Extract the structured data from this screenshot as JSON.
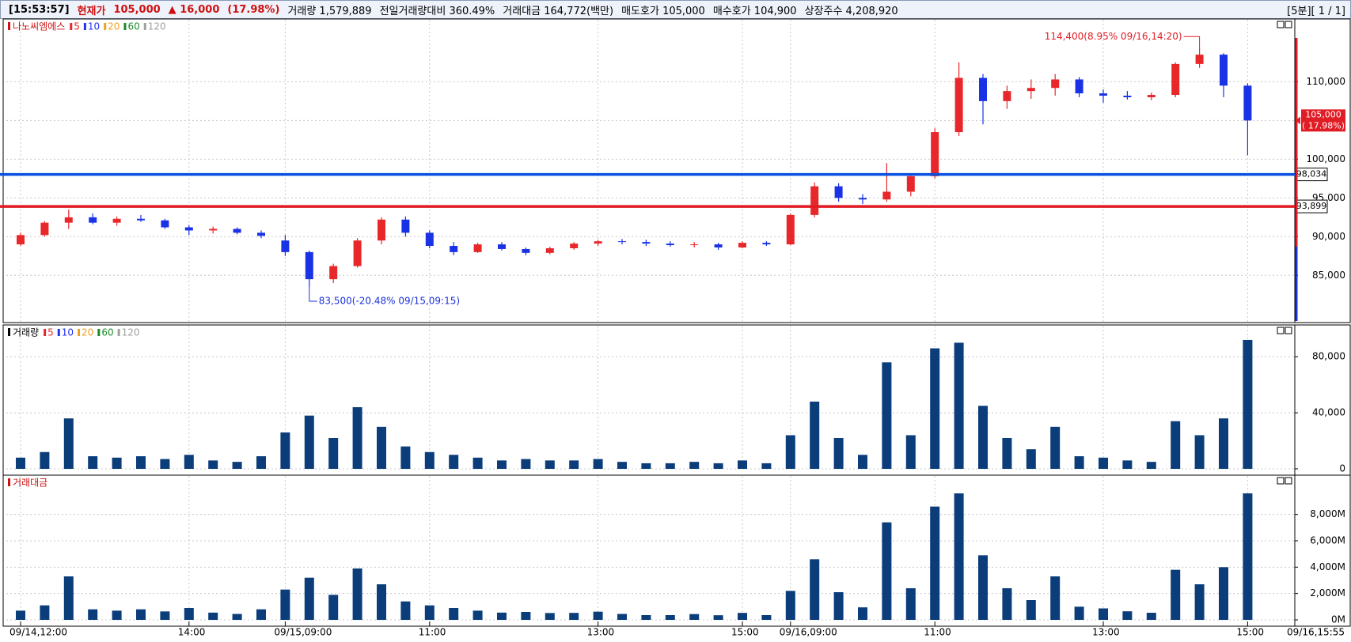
{
  "header": {
    "items": [
      {
        "text": "[15:53:57]",
        "color": "#000000"
      },
      {
        "text": "현재가",
        "color": "#d01010"
      },
      {
        "text": "105,000",
        "color": "#d01010"
      },
      {
        "text": "▲ 16,000",
        "color": "#d01010"
      },
      {
        "text": "(17.98%)",
        "color": "#d01010"
      },
      {
        "text": "거래량 1,579,889",
        "color": "#000000"
      },
      {
        "text": "전일거래량대비 360.49%",
        "color": "#000000"
      },
      {
        "text": "거래대금 164,772(백만)",
        "color": "#000000"
      },
      {
        "text": "매도호가 105,000",
        "color": "#000000"
      },
      {
        "text": "매수호가 104,900",
        "color": "#000000"
      },
      {
        "text": "상장주수 4,208,920",
        "color": "#000000"
      }
    ],
    "right": "[5분][ 1 / 1]"
  },
  "chart_data": [
    {
      "type": "candlestick",
      "title": "나노씨엠에스",
      "title_color": "#d01010",
      "legend": [
        {
          "name": "5",
          "color": "#e8272a"
        },
        {
          "name": "10",
          "color": "#2233ee"
        },
        {
          "name": "20",
          "color": "#f0a020"
        },
        {
          "name": "60",
          "color": "#1a8a2a"
        },
        {
          "name": "120",
          "color": "#a0a0a0"
        }
      ],
      "up_color": "#e8272a",
      "down_color": "#1932e6",
      "open": [
        89000,
        90200,
        91800,
        92500,
        91800,
        92300,
        92100,
        91200,
        90800,
        91000,
        90500,
        89500,
        88000,
        84500,
        86200,
        89500,
        92200,
        90500,
        88800,
        88000,
        89000,
        88400,
        87900,
        88500,
        89100,
        89400,
        89300,
        89100,
        88900,
        89000,
        88600,
        89200,
        89000,
        92800,
        96500,
        95000,
        94800,
        95800,
        97800,
        103500,
        110500,
        107500,
        108800,
        109200,
        110300,
        108500,
        108200,
        108000,
        108300,
        112300,
        113500,
        109500
      ],
      "high": [
        90500,
        92000,
        93500,
        93000,
        92600,
        92800,
        92300,
        91500,
        91300,
        91200,
        90800,
        90200,
        88200,
        86500,
        89800,
        92500,
        92600,
        90800,
        89300,
        89200,
        89300,
        88600,
        88700,
        89300,
        89600,
        89700,
        89600,
        89400,
        89300,
        89200,
        89400,
        89400,
        93000,
        97000,
        96900,
        95500,
        99500,
        98000,
        104000,
        112500,
        111000,
        109500,
        110300,
        111000,
        110600,
        109000,
        108800,
        108600,
        112500,
        114400,
        113700,
        109800
      ],
      "low": [
        88800,
        90000,
        91000,
        91600,
        91400,
        91900,
        91000,
        90200,
        90400,
        90300,
        89800,
        87500,
        83500,
        84000,
        86000,
        89000,
        90000,
        88500,
        87600,
        87900,
        88200,
        87600,
        87700,
        88300,
        88800,
        89000,
        88800,
        88700,
        88600,
        88300,
        88500,
        88800,
        88900,
        92500,
        94500,
        94200,
        94500,
        95200,
        97500,
        103000,
        104500,
        106500,
        107800,
        108200,
        108000,
        107300,
        107700,
        107600,
        108000,
        111800,
        108000,
        100500
      ],
      "close": [
        90200,
        91800,
        92500,
        91800,
        92300,
        92100,
        91200,
        90800,
        91000,
        90500,
        90100,
        88000,
        84500,
        86200,
        89500,
        92200,
        90500,
        88800,
        88000,
        89000,
        88400,
        87900,
        88500,
        89100,
        89400,
        89300,
        89100,
        88900,
        89000,
        88600,
        89200,
        89000,
        92800,
        96500,
        95000,
        94800,
        95800,
        97800,
        103500,
        110500,
        107500,
        108800,
        109200,
        110300,
        108500,
        108200,
        108000,
        108300,
        112300,
        113500,
        109500,
        105000
      ],
      "ylim": [
        78900,
        117800
      ],
      "yticks": [
        {
          "value": 85000,
          "label": "85,000"
        },
        {
          "value": 90000,
          "label": "90,000"
        },
        {
          "value": 95000,
          "label": "95,000"
        },
        {
          "value": 100000,
          "label": "100,000"
        },
        {
          "value": 105000,
          "label": "105,000"
        },
        {
          "value": 110000,
          "label": "110,000"
        }
      ],
      "grid": true,
      "hlines": [
        {
          "value": 98034,
          "label": "98,034",
          "color": "#0a50e0"
        },
        {
          "value": 93899,
          "label": "93,899",
          "color": "#e01c24"
        }
      ],
      "annotations": [
        {
          "text": "114,400(8.95% 09/16,14:20)",
          "value": 114400,
          "color": "#e01c24"
        },
        {
          "text": "83,500(-20.48% 09/15,09:15)",
          "value": 83500,
          "color": "#1a32d8"
        }
      ],
      "last_label": {
        "value": 105000,
        "label": "105,000",
        "change": "( 17.98%)",
        "color": "#e01c24"
      }
    },
    {
      "type": "bar",
      "title": "거래량",
      "title_color": "#000000",
      "color": "#0b3d7a",
      "legend": [
        {
          "name": "5",
          "color": "#e8272a"
        },
        {
          "name": "10",
          "color": "#2233ee"
        },
        {
          "name": "20",
          "color": "#f0a020"
        },
        {
          "name": "60",
          "color": "#1a8a2a"
        },
        {
          "name": "120",
          "color": "#a0a0a0"
        }
      ],
      "values": [
        8000,
        12000,
        36000,
        9000,
        8000,
        9000,
        7000,
        10000,
        6000,
        5000,
        9000,
        26000,
        38000,
        22000,
        44000,
        30000,
        16000,
        12000,
        10000,
        8000,
        6000,
        7000,
        6000,
        6000,
        7000,
        5000,
        4000,
        4000,
        5000,
        4000,
        6000,
        4000,
        24000,
        48000,
        22000,
        10000,
        76000,
        24000,
        86000,
        90000,
        45000,
        22000,
        14000,
        30000,
        9000,
        8000,
        6000,
        5000,
        34000,
        24000,
        36000,
        92000
      ],
      "ylim": [
        0,
        101000
      ],
      "yticks": [
        0,
        {
          "value": 40000,
          "label": "40,000"
        },
        {
          "value": 80000,
          "label": "80,000"
        }
      ],
      "grid": true
    },
    {
      "type": "bar",
      "title": "거래대금",
      "title_color": "#d01010",
      "color": "#0b3d7a",
      "values": [
        700,
        1100,
        3300,
        800,
        700,
        800,
        640,
        900,
        550,
        450,
        800,
        2300,
        3200,
        1900,
        3900,
        2700,
        1400,
        1100,
        900,
        700,
        550,
        600,
        520,
        530,
        620,
        450,
        360,
        360,
        440,
        350,
        530,
        360,
        2200,
        4600,
        2100,
        950,
        7400,
        2400,
        8600,
        9600,
        4900,
        2400,
        1500,
        3300,
        1000,
        870,
        650,
        540,
        3800,
        2700,
        4000,
        9600
      ],
      "ylim": [
        0,
        10800
      ],
      "yticks": [
        {
          "value": 0,
          "label": "0M"
        },
        {
          "value": 2000,
          "label": "2,000M"
        },
        {
          "value": 4000,
          "label": "4,000M"
        },
        {
          "value": 6000,
          "label": "6,000M"
        },
        {
          "value": 8000,
          "label": "8,000M"
        }
      ],
      "grid": true,
      "categories": [
        "09/14,12:00",
        null,
        null,
        null,
        null,
        null,
        null,
        "14:00",
        null,
        null,
        null,
        "09/15,09:00",
        null,
        null,
        null,
        null,
        null,
        "11:00",
        null,
        null,
        null,
        null,
        null,
        null,
        "13:00",
        null,
        null,
        null,
        null,
        null,
        "15:00",
        null,
        "09/16,09:00",
        null,
        null,
        null,
        null,
        null,
        "11:00",
        null,
        null,
        null,
        null,
        null,
        null,
        "13:00",
        null,
        null,
        null,
        null,
        null,
        "15:00"
      ],
      "x_end_label": "09/16,15:55"
    }
  ]
}
